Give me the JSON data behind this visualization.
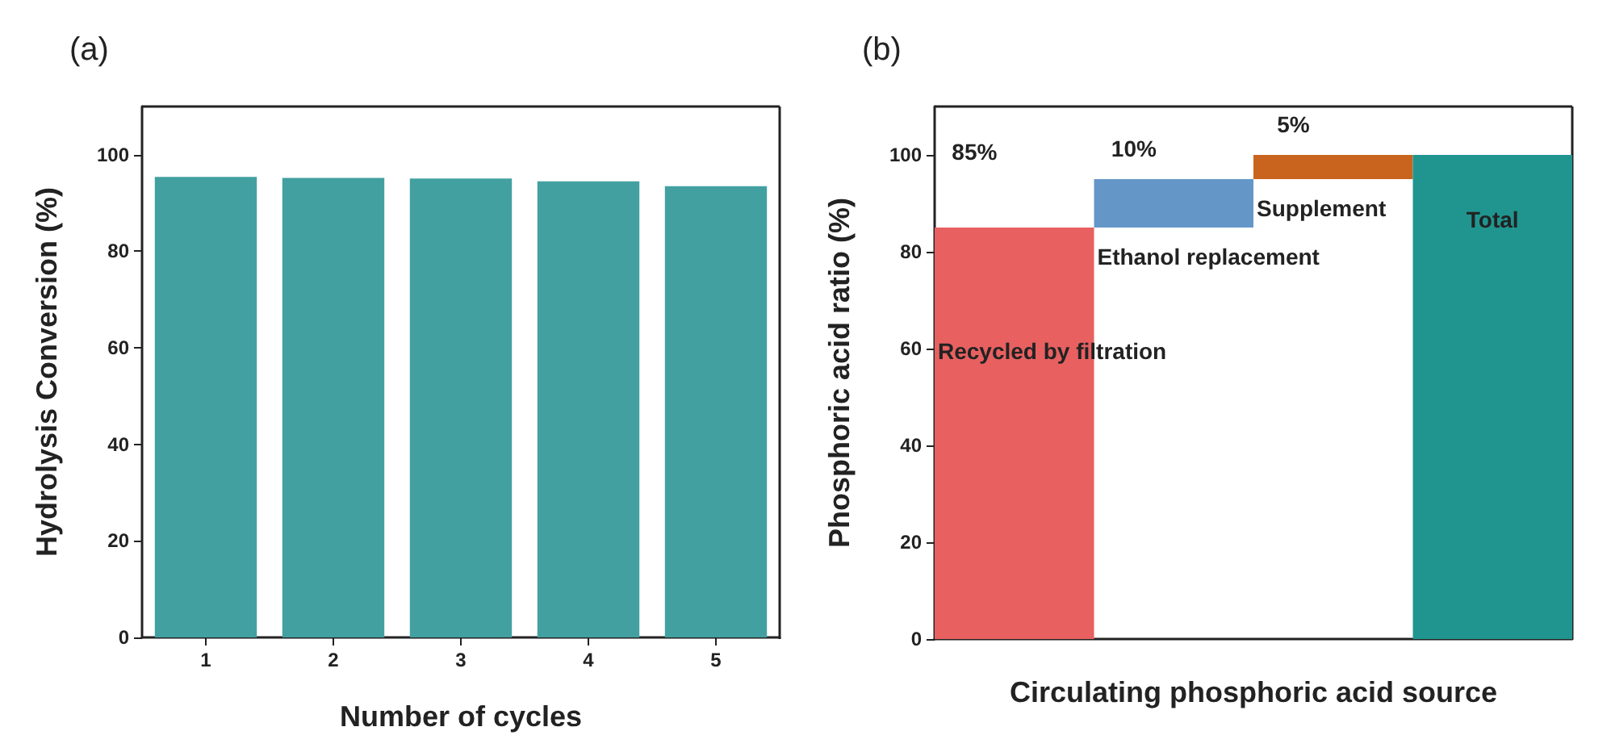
{
  "chart_data": [
    {
      "type": "bar",
      "title": "(a)",
      "xlabel": "Number of cycles",
      "ylabel": "Hydrolysis Conversion (%)",
      "categories": [
        "1",
        "2",
        "3",
        "4",
        "5"
      ],
      "values": [
        95.4,
        95.2,
        95.1,
        94.5,
        93.5
      ],
      "color": "#42a0a0",
      "ylim": [
        0,
        110
      ],
      "yticks": [
        0,
        20,
        40,
        60,
        80,
        100
      ],
      "grid": false
    },
    {
      "type": "bar",
      "title": "(b)",
      "xlabel": "Circulating phosphoric acid source",
      "ylabel": "Phosphoric acid ratio (%)",
      "categories": [
        null,
        null,
        null,
        null
      ],
      "values": [
        85,
        10,
        5,
        100
      ],
      "base": [
        0,
        85,
        95,
        0
      ],
      "colors": [
        "#e86060",
        "#6497c8",
        "#c8641e",
        "#20958f"
      ],
      "value_labels": [
        "85%",
        "10%",
        "5%",
        null
      ],
      "annotations": [
        "Recycled by filtration",
        "Ethanol replacement",
        "Supplement",
        "Total"
      ],
      "ylim": [
        0,
        110
      ],
      "yticks": [
        0,
        20,
        40,
        60,
        80,
        100
      ],
      "grid": false
    }
  ]
}
